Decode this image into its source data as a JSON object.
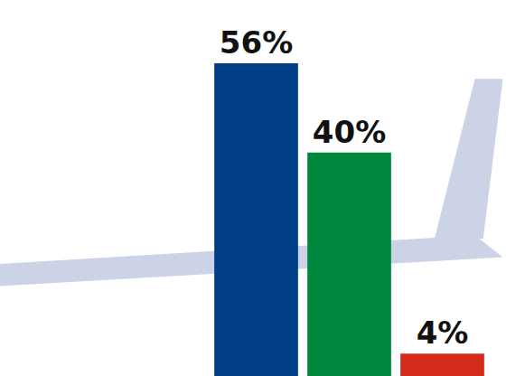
{
  "chart_data": {
    "type": "bar",
    "categories": [
      null,
      null,
      null
    ],
    "values": [
      56,
      40,
      4
    ],
    "value_labels": [
      "56%",
      "40%",
      "4%"
    ],
    "colors": [
      "#003f87",
      "#00873e",
      "#d42a1a"
    ],
    "ylim": [
      0,
      56
    ],
    "data_labels": true,
    "tick_labels": false,
    "grid": false
  }
}
